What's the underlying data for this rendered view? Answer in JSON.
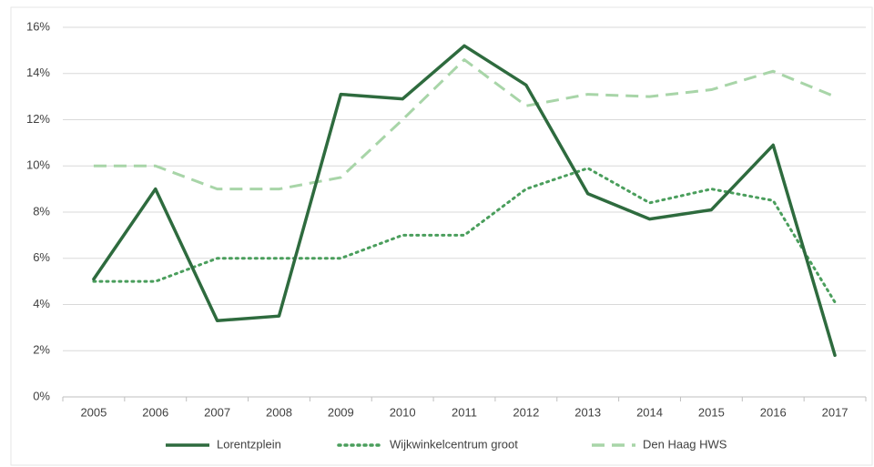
{
  "chart_data": {
    "type": "line",
    "categories": [
      "2005",
      "2006",
      "2007",
      "2008",
      "2009",
      "2010",
      "2011",
      "2012",
      "2013",
      "2014",
      "2015",
      "2016",
      "2017"
    ],
    "series": [
      {
        "name": "Lorentzplein",
        "color": "#2e6b3e",
        "line_style": "solid",
        "values": [
          5.1,
          9.0,
          3.3,
          3.5,
          13.1,
          12.9,
          15.2,
          13.5,
          8.8,
          7.7,
          8.1,
          10.9,
          1.8
        ]
      },
      {
        "name": "Wijkwinkelcentrum groot",
        "color": "#4a9e5c",
        "line_style": "dotted",
        "values": [
          5.0,
          5.0,
          6.0,
          6.0,
          6.0,
          7.0,
          7.0,
          9.0,
          9.9,
          8.4,
          9.0,
          8.5,
          4.1
        ]
      },
      {
        "name": "Den Haag HWS",
        "color": "#a8d5a8",
        "line_style": "dashed",
        "values": [
          10.0,
          10.0,
          9.0,
          9.0,
          9.5,
          12.0,
          14.6,
          12.6,
          13.1,
          13.0,
          13.3,
          14.1,
          13.0
        ]
      }
    ],
    "ylim": [
      0,
      16
    ],
    "yticks": [
      {
        "value": 0,
        "label": "0%"
      },
      {
        "value": 2,
        "label": "2%"
      },
      {
        "value": 4,
        "label": "4%"
      },
      {
        "value": 6,
        "label": "6%"
      },
      {
        "value": 8,
        "label": "8%"
      },
      {
        "value": 10,
        "label": "10%"
      },
      {
        "value": 12,
        "label": "12%"
      },
      {
        "value": 14,
        "label": "14%"
      },
      {
        "value": 16,
        "label": "16%"
      }
    ],
    "grid": true,
    "legend": "bottom"
  }
}
